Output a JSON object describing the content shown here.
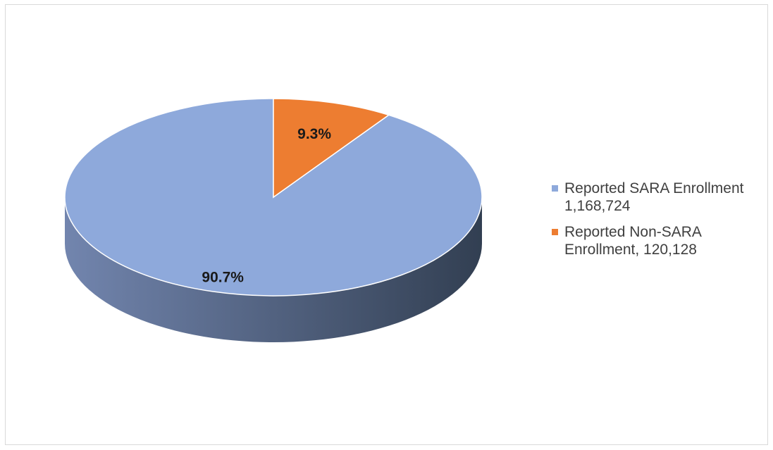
{
  "chart_data": {
    "type": "pie",
    "style": "3d",
    "slices": [
      {
        "label": "Reported SARA Enrollment 1,168,724",
        "value": 1168724,
        "percent_label": "90.7%",
        "color": "#8EA9DB",
        "side_color_light": "#7285AE",
        "side_color_dark": "#323F52"
      },
      {
        "label": "Reported Non-SARA Enrollment, 120,128",
        "value": 120128,
        "percent_label": "9.3%",
        "color": "#ED7D31"
      }
    ],
    "start_angle_deg": -90,
    "direction": "counterclockwise",
    "legend_position": "right"
  }
}
